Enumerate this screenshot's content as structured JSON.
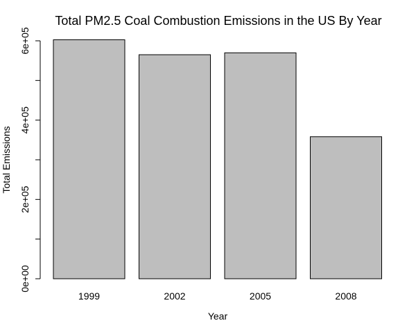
{
  "chart_data": {
    "type": "bar",
    "title": "Total PM2.5 Coal Combustion Emissions in the US By Year",
    "xlabel": "Year",
    "ylabel": "Total Emissions",
    "categories": [
      "1999",
      "2002",
      "2005",
      "2008"
    ],
    "values": [
      602624,
      564940,
      569655,
      358084
    ],
    "ylim": [
      0,
      600000
    ],
    "y_ticks": [
      0,
      100000,
      200000,
      300000,
      400000,
      500000,
      600000
    ],
    "y_tick_labels": [
      "0e+00",
      "2e+05",
      "4e+05",
      "6e+05"
    ],
    "y_labeled_ticks": [
      0,
      200000,
      400000,
      600000
    ],
    "grid": false,
    "bar_color": "#bebebe",
    "bar_border_color": "#000000"
  }
}
